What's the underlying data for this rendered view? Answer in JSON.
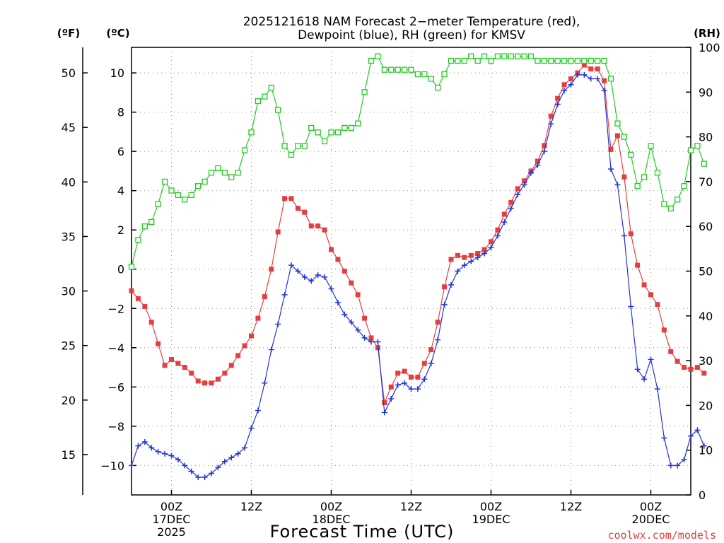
{
  "chart_data": {
    "type": "line",
    "title": "2025121618 NAM Forecast 2−meter Temperature (red),",
    "subtitle": "Dewpoint (blue), RH (green) for KMSV",
    "xlabel": "Forecast Time (UTC)",
    "credit": "coolwx.com/models",
    "units": {
      "fahrenheit": "(ºF)",
      "celsius": "(ºC)",
      "rh": "(RH)"
    },
    "x_range_hours": [
      18,
      102
    ],
    "x_step_hours": 1,
    "x_ticks": [
      {
        "hour": 24,
        "lines": [
          "00Z",
          "17DEC",
          "2025"
        ]
      },
      {
        "hour": 36,
        "lines": [
          "12Z"
        ]
      },
      {
        "hour": 48,
        "lines": [
          "00Z",
          "18DEC"
        ]
      },
      {
        "hour": 60,
        "lines": [
          "12Z"
        ]
      },
      {
        "hour": 72,
        "lines": [
          "00Z",
          "19DEC"
        ]
      },
      {
        "hour": 84,
        "lines": [
          "12Z"
        ]
      },
      {
        "hour": 96,
        "lines": [
          "00Z",
          "20DEC"
        ]
      }
    ],
    "y_celsius": {
      "range": [
        -11.5,
        11.3
      ],
      "ticks": [
        -10,
        -8,
        -6,
        -4,
        -2,
        0,
        2,
        4,
        6,
        8,
        10
      ],
      "labels": [
        "−10",
        "−8",
        "−6",
        "−4",
        "−2",
        "0",
        "2",
        "4",
        "6",
        "8",
        "10"
      ]
    },
    "y_fahrenheit": {
      "ticks": [
        15,
        20,
        25,
        30,
        35,
        40,
        45,
        50
      ],
      "labels": [
        "15",
        "20",
        "25",
        "30",
        "35",
        "40",
        "45",
        "50"
      ]
    },
    "y_rh": {
      "range": [
        0,
        100
      ],
      "ticks": [
        0,
        10,
        20,
        30,
        40,
        50,
        60,
        70,
        80,
        90,
        100
      ],
      "labels": [
        "0",
        "10",
        "20",
        "30",
        "40",
        "50",
        "60",
        "70",
        "80",
        "90",
        "100"
      ]
    },
    "series": [
      {
        "name": "Temperature (°C)",
        "color": "#e53e3e",
        "marker": "square",
        "axis": "celsius",
        "values": [
          -1.1,
          -1.5,
          -1.9,
          -2.7,
          -3.8,
          -4.9,
          -4.6,
          -4.8,
          -5.0,
          -5.3,
          -5.7,
          -5.8,
          -5.8,
          -5.6,
          -5.3,
          -4.9,
          -4.4,
          -3.9,
          -3.4,
          -2.5,
          -1.4,
          0.0,
          1.9,
          3.6,
          3.6,
          3.1,
          2.9,
          2.2,
          2.2,
          2.0,
          1.0,
          0.5,
          -0.1,
          -0.7,
          -1.3,
          -2.5,
          -3.5,
          -4.0,
          -6.8,
          -6.0,
          -5.3,
          -5.2,
          -5.5,
          -5.5,
          -4.8,
          -4.1,
          -2.7,
          -0.9,
          0.5,
          0.7,
          0.6,
          0.7,
          0.8,
          1.0,
          1.4,
          2.0,
          2.8,
          3.4,
          4.1,
          4.5,
          5.0,
          5.5,
          6.3,
          7.8,
          8.7,
          9.4,
          9.7,
          10.0,
          10.4,
          10.2,
          10.2,
          9.6,
          6.1,
          6.8,
          4.7,
          1.8,
          0.2,
          -0.8,
          -1.3,
          -1.8,
          -3.1,
          -4.2,
          -4.7,
          -5.0,
          -5.1,
          -5.0,
          -5.3
        ]
      },
      {
        "name": "Dewpoint (°C)",
        "color": "#2233dd",
        "marker": "plus",
        "axis": "celsius",
        "values": [
          -10.0,
          -9.0,
          -8.8,
          -9.1,
          -9.3,
          -9.4,
          -9.5,
          -9.7,
          -10.0,
          -10.3,
          -10.6,
          -10.6,
          -10.4,
          -10.1,
          -9.8,
          -9.6,
          -9.4,
          -9.1,
          -8.1,
          -7.2,
          -5.8,
          -4.1,
          -2.8,
          -1.3,
          0.2,
          -0.1,
          -0.4,
          -0.6,
          -0.3,
          -0.4,
          -1.0,
          -1.7,
          -2.3,
          -2.7,
          -3.1,
          -3.5,
          -3.7,
          -3.7,
          -7.3,
          -6.6,
          -5.9,
          -5.8,
          -6.1,
          -6.1,
          -5.6,
          -4.8,
          -3.6,
          -1.8,
          -0.8,
          -0.1,
          0.2,
          0.4,
          0.6,
          0.8,
          1.1,
          1.7,
          2.4,
          3.1,
          3.8,
          4.3,
          4.9,
          5.3,
          6.0,
          7.4,
          8.4,
          9.1,
          9.4,
          9.9,
          9.9,
          9.7,
          9.7,
          9.1,
          5.1,
          4.3,
          1.7,
          -1.9,
          -5.1,
          -5.6,
          -4.6,
          -6.1,
          -8.6,
          -10.0,
          -10.0,
          -9.7,
          -8.5,
          -8.2,
          -9.0
        ]
      },
      {
        "name": "RH (%)",
        "color": "#22cc22",
        "marker": "open-square",
        "axis": "rh",
        "values": [
          51,
          57,
          60,
          61,
          65,
          70,
          68,
          67,
          66,
          67,
          69,
          70,
          72,
          73,
          72,
          71,
          72,
          77,
          81,
          88,
          89,
          91,
          86,
          78,
          76,
          78,
          78,
          82,
          81,
          79,
          81,
          81,
          82,
          82,
          83,
          90,
          97,
          98,
          95,
          95,
          95,
          95,
          95,
          94,
          94,
          93,
          91,
          94,
          97,
          97,
          97,
          98,
          97,
          98,
          97,
          98,
          98,
          98,
          98,
          98,
          98,
          97,
          97,
          97,
          97,
          97,
          97,
          97,
          97,
          97,
          97,
          97,
          93,
          83,
          80,
          76,
          69,
          71,
          78,
          72,
          65,
          64,
          66,
          69,
          77,
          78,
          74
        ]
      }
    ]
  }
}
